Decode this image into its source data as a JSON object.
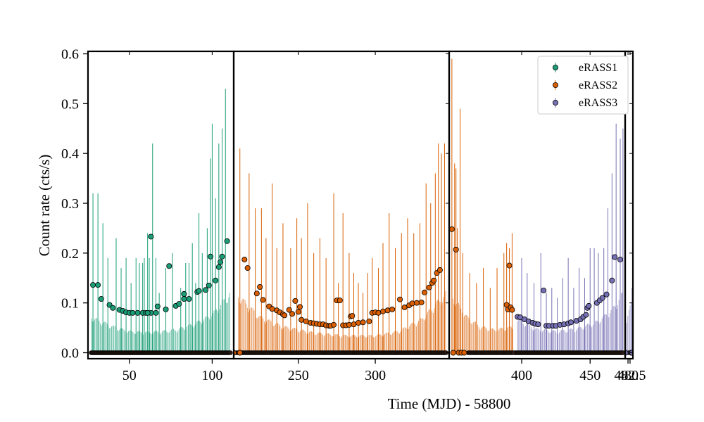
{
  "chart_data": {
    "type": "scatter",
    "ylabel": "Count rate (cts/s)",
    "xlabel": "Time (MJD) - 58800",
    "ylim": [
      -0.012,
      0.605
    ],
    "yticks": [
      {
        "value": 0.0,
        "label": "0.0"
      },
      {
        "value": 0.1,
        "label": "0.1"
      },
      {
        "value": 0.2,
        "label": "0.2"
      },
      {
        "value": 0.3,
        "label": "0.3"
      },
      {
        "value": 0.4,
        "label": "0.4"
      },
      {
        "value": 0.5,
        "label": "0.5"
      },
      {
        "value": 0.6,
        "label": "0.6"
      }
    ],
    "legend_position": "top-right",
    "legend": [
      {
        "label": "eRASS1",
        "color": "#1b9e77"
      },
      {
        "label": "eRASS2",
        "color": "#d95f02"
      },
      {
        "label": "eRASS3",
        "color": "#7570b3"
      }
    ],
    "panels": [
      {
        "name": "eRASS1",
        "color": "#1b9e77",
        "xlim": [
          25,
          113
        ],
        "ticks": [
          {
            "value": 50,
            "label": "50"
          },
          {
            "value": 100,
            "label": "100"
          }
        ],
        "points": [
          [
            28,
            0.136
          ],
          [
            31,
            0.136
          ],
          [
            33,
            0.108
          ],
          [
            38,
            0.096
          ],
          [
            40,
            0.09
          ],
          [
            44,
            0.086
          ],
          [
            46,
            0.084
          ],
          [
            48,
            0.081
          ],
          [
            50,
            0.08
          ],
          [
            52,
            0.08
          ],
          [
            55,
            0.08
          ],
          [
            58,
            0.08
          ],
          [
            60,
            0.08
          ],
          [
            63,
            0.08
          ],
          [
            66,
            0.08
          ],
          [
            61,
            0.08
          ],
          [
            63,
            0.233
          ],
          [
            67,
            0.093
          ],
          [
            72,
            0.087
          ],
          [
            74,
            0.174
          ],
          [
            78,
            0.094
          ],
          [
            80,
            0.098
          ],
          [
            83,
            0.108
          ],
          [
            83,
            0.118
          ],
          [
            86,
            0.108
          ],
          [
            91,
            0.122
          ],
          [
            92,
            0.124
          ],
          [
            96,
            0.126
          ],
          [
            98,
            0.135
          ],
          [
            99,
            0.193
          ],
          [
            102,
            0.145
          ],
          [
            104,
            0.172
          ],
          [
            105,
            0.182
          ],
          [
            106,
            0.193
          ],
          [
            109,
            0.224
          ]
        ],
        "zero_points": {
          "from": 27,
          "to": 111,
          "count": 150
        },
        "band": [
          [
            27,
            0.075
          ],
          [
            40,
            0.055
          ],
          [
            50,
            0.045
          ],
          [
            60,
            0.043
          ],
          [
            70,
            0.045
          ],
          [
            80,
            0.05
          ],
          [
            90,
            0.062
          ],
          [
            100,
            0.08
          ],
          [
            111,
            0.125
          ]
        ],
        "spikes": [
          [
            28,
            0.32
          ],
          [
            31,
            0.32
          ],
          [
            34,
            0.26
          ],
          [
            37,
            0.19
          ],
          [
            42,
            0.23
          ],
          [
            45,
            0.17
          ],
          [
            48,
            0.19
          ],
          [
            51,
            0.14
          ],
          [
            54,
            0.19
          ],
          [
            56,
            0.18
          ],
          [
            58,
            0.18
          ],
          [
            59,
            0.19
          ],
          [
            61,
            0.24
          ],
          [
            62,
            0.19
          ],
          [
            64,
            0.42
          ],
          [
            66,
            0.19
          ],
          [
            68,
            0.12
          ],
          [
            72,
            0.17
          ],
          [
            76,
            0.2
          ],
          [
            81,
            0.13
          ],
          [
            84,
            0.18
          ],
          [
            86,
            0.18
          ],
          [
            88,
            0.22
          ],
          [
            90,
            0.14
          ],
          [
            92,
            0.28
          ],
          [
            94,
            0.2
          ],
          [
            97,
            0.25
          ],
          [
            99,
            0.39
          ],
          [
            100,
            0.46
          ],
          [
            102,
            0.31
          ],
          [
            104,
            0.42
          ],
          [
            106,
            0.45
          ],
          [
            108,
            0.53
          ]
        ]
      },
      {
        "name": "eRASS2",
        "color": "#d95f02",
        "xlim": [
          208,
          348
        ],
        "ticks": [
          {
            "value": 250,
            "label": "250"
          },
          {
            "value": 300,
            "label": "300"
          }
        ],
        "points": [
          [
            208,
            0.0
          ],
          [
            212,
            0.0
          ],
          [
            215,
            0.187
          ],
          [
            217,
            0.17
          ],
          [
            223,
            0.119
          ],
          [
            225,
            0.132
          ],
          [
            227,
            0.106
          ],
          [
            231,
            0.093
          ],
          [
            233,
            0.088
          ],
          [
            236,
            0.085
          ],
          [
            238,
            0.081
          ],
          [
            240,
            0.077
          ],
          [
            241,
            0.075
          ],
          [
            244,
            0.086
          ],
          [
            246,
            0.078
          ],
          [
            248,
            0.104
          ],
          [
            250,
            0.082
          ],
          [
            251,
            0.092
          ],
          [
            252,
            0.066
          ],
          [
            255,
            0.063
          ],
          [
            258,
            0.06
          ],
          [
            260,
            0.059
          ],
          [
            262,
            0.058
          ],
          [
            264,
            0.057
          ],
          [
            266,
            0.057
          ],
          [
            268,
            0.055
          ],
          [
            270,
            0.054
          ],
          [
            271,
            0.054
          ],
          [
            273,
            0.056
          ],
          [
            275,
            0.105
          ],
          [
            277,
            0.105
          ],
          [
            279,
            0.055
          ],
          [
            281,
            0.055
          ],
          [
            283,
            0.056
          ],
          [
            284,
            0.073
          ],
          [
            285,
            0.074
          ],
          [
            286,
            0.057
          ],
          [
            289,
            0.06
          ],
          [
            292,
            0.061
          ],
          [
            296,
            0.063
          ],
          [
            298,
            0.08
          ],
          [
            300,
            0.081
          ],
          [
            302,
            0.08
          ],
          [
            305,
            0.083
          ],
          [
            308,
            0.085
          ],
          [
            311,
            0.087
          ],
          [
            316,
            0.107
          ],
          [
            319,
            0.091
          ],
          [
            322,
            0.095
          ],
          [
            324,
            0.099
          ],
          [
            327,
            0.1
          ],
          [
            330,
            0.101
          ],
          [
            332,
            0.121
          ],
          [
            335,
            0.131
          ],
          [
            337,
            0.14
          ],
          [
            338,
            0.145
          ],
          [
            340,
            0.16
          ],
          [
            342,
            0.166
          ]
        ],
        "zero_points": {
          "from": 210,
          "to": 346,
          "count": 190
        },
        "band": [
          [
            211,
            0.12
          ],
          [
            225,
            0.075
          ],
          [
            240,
            0.055
          ],
          [
            260,
            0.042
          ],
          [
            280,
            0.036
          ],
          [
            300,
            0.036
          ],
          [
            315,
            0.045
          ],
          [
            330,
            0.07
          ],
          [
            346,
            0.125
          ]
        ],
        "spikes": [
          [
            212,
            0.41
          ],
          [
            218,
            0.36
          ],
          [
            222,
            0.29
          ],
          [
            226,
            0.29
          ],
          [
            229,
            0.23
          ],
          [
            233,
            0.34
          ],
          [
            236,
            0.21
          ],
          [
            240,
            0.26
          ],
          [
            245,
            0.21
          ],
          [
            249,
            0.27
          ],
          [
            252,
            0.23
          ],
          [
            256,
            0.3
          ],
          [
            260,
            0.2
          ],
          [
            264,
            0.23
          ],
          [
            268,
            0.19
          ],
          [
            273,
            0.32
          ],
          [
            276,
            0.14
          ],
          [
            279,
            0.28
          ],
          [
            283,
            0.2
          ],
          [
            286,
            0.16
          ],
          [
            289,
            0.14
          ],
          [
            292,
            0.12
          ],
          [
            295,
            0.16
          ],
          [
            298,
            0.19
          ],
          [
            302,
            0.17
          ],
          [
            305,
            0.22
          ],
          [
            309,
            0.28
          ],
          [
            313,
            0.21
          ],
          [
            317,
            0.24
          ],
          [
            321,
            0.27
          ],
          [
            325,
            0.24
          ],
          [
            329,
            0.26
          ],
          [
            333,
            0.34
          ],
          [
            336,
            0.3
          ],
          [
            339,
            0.36
          ],
          [
            341,
            0.42
          ],
          [
            343,
            0.4
          ],
          [
            345,
            0.42
          ]
        ]
      },
      {
        "name": "eRASS3",
        "color": "#7570b3",
        "xlim": [
          347,
          475.6
        ],
        "ticks": [
          {
            "value": 400,
            "label": "400"
          },
          {
            "value": 450,
            "label": "450"
          }
        ],
        "points": [
          [
            397,
            0.072
          ],
          [
            399,
            0.071
          ],
          [
            402,
            0.067
          ],
          [
            405,
            0.063
          ],
          [
            408,
            0.06
          ],
          [
            410,
            0.058
          ],
          [
            412,
            0.057
          ],
          [
            416,
            0.125
          ],
          [
            418,
            0.054
          ],
          [
            420,
            0.054
          ],
          [
            423,
            0.054
          ],
          [
            425,
            0.054
          ],
          [
            428,
            0.056
          ],
          [
            431,
            0.057
          ],
          [
            434,
            0.059
          ],
          [
            436,
            0.061
          ],
          [
            440,
            0.064
          ],
          [
            443,
            0.067
          ],
          [
            445,
            0.072
          ],
          [
            447,
            0.076
          ],
          [
            448,
            0.09
          ],
          [
            449,
            0.094
          ],
          [
            455,
            0.1
          ],
          [
            457,
            0.105
          ],
          [
            459,
            0.11
          ],
          [
            462,
            0.117
          ],
          [
            466,
            0.145
          ],
          [
            468,
            0.192
          ],
          [
            472,
            0.187
          ]
        ],
        "zero_points": {
          "from": 395,
          "to": 474,
          "count": 110
        },
        "band": [
          [
            397,
            0.07
          ],
          [
            410,
            0.05
          ],
          [
            425,
            0.045
          ],
          [
            440,
            0.05
          ],
          [
            455,
            0.065
          ],
          [
            466,
            0.09
          ],
          [
            474,
            0.125
          ]
        ],
        "spikes": [
          [
            400,
            0.19
          ],
          [
            404,
            0.16
          ],
          [
            409,
            0.14
          ],
          [
            414,
            0.2
          ],
          [
            418,
            0.12
          ],
          [
            422,
            0.13
          ],
          [
            426,
            0.11
          ],
          [
            430,
            0.15
          ],
          [
            434,
            0.19
          ],
          [
            438,
            0.13
          ],
          [
            442,
            0.17
          ],
          [
            446,
            0.15
          ],
          [
            450,
            0.21
          ],
          [
            453,
            0.21
          ],
          [
            456,
            0.2
          ],
          [
            460,
            0.21
          ],
          [
            463,
            0.29
          ],
          [
            466,
            0.36
          ],
          [
            469,
            0.46
          ],
          [
            472,
            0.43
          ],
          [
            474,
            0.45
          ]
        ]
      },
      {
        "name": "eRASS2",
        "color": "#d95f02",
        "xlim": [
          347,
          475.6
        ],
        "ticks": [],
        "points": [
          [
            349,
            0.248
          ],
          [
            350,
            0.0
          ],
          [
            352,
            0.207
          ],
          [
            354,
            0.0
          ],
          [
            356,
            0.0
          ],
          [
            358,
            0.0
          ],
          [
            389,
            0.096
          ],
          [
            390,
            0.087
          ],
          [
            391,
            0.175
          ],
          [
            392,
            0.091
          ],
          [
            393,
            0.086
          ]
        ],
        "zero_points": {
          "from": 361,
          "to": 394,
          "count": 40
        },
        "band": [
          [
            349,
            0.12
          ],
          [
            360,
            0.075
          ],
          [
            370,
            0.055
          ],
          [
            380,
            0.048
          ],
          [
            394,
            0.055
          ]
        ],
        "spikes": [
          [
            349,
            0.59
          ],
          [
            351,
            0.38
          ],
          [
            352,
            0.37
          ],
          [
            353,
            0.25
          ],
          [
            355,
            0.49
          ],
          [
            357,
            0.2
          ],
          [
            362,
            0.16
          ],
          [
            367,
            0.14
          ],
          [
            372,
            0.17
          ],
          [
            377,
            0.13
          ],
          [
            382,
            0.17
          ],
          [
            387,
            0.2
          ],
          [
            389,
            0.22
          ],
          [
            391,
            0.21
          ],
          [
            393,
            0.24
          ]
        ]
      },
      {
        "name": "eRASS3",
        "color": "#7570b3",
        "xlim": [
          476.5,
          486
        ],
        "ticks": [
          {
            "value": 480,
            "label": "480"
          },
          {
            "value": 482.5,
            "label": "482.5"
          }
        ],
        "points": [
          [
            477,
            0.0
          ],
          [
            484,
            0.0
          ],
          [
            485,
            0.0
          ]
        ],
        "zero_points": {
          "from": 477,
          "to": 485,
          "count": 3
        },
        "band": [
          [
            477,
            0.05
          ],
          [
            485,
            0.12
          ]
        ],
        "spikes": [
          [
            485,
            0.13
          ]
        ]
      }
    ]
  }
}
